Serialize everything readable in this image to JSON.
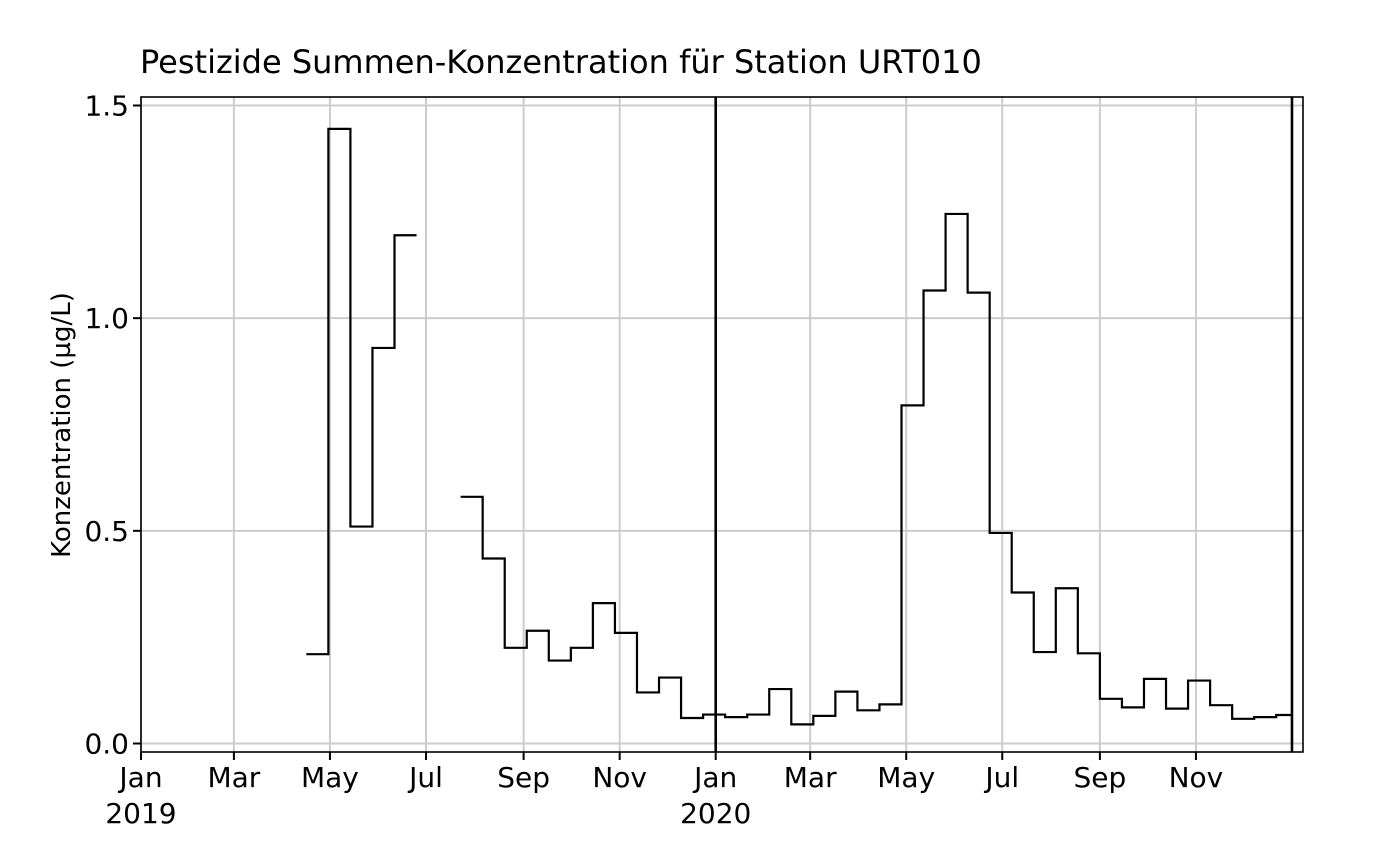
{
  "chart_data": {
    "type": "line",
    "step": true,
    "title": "Pestizide Summen-Konzentration für Station URT010",
    "xlabel": "",
    "ylabel": "Konzentration (µg/L)",
    "ylim": [
      -0.02,
      1.52
    ],
    "xlim": [
      "2019-01-01",
      "2021-01-08"
    ],
    "yticks": [
      0.0,
      0.5,
      1.0,
      1.5
    ],
    "ytick_labels": [
      "0.0",
      "0.5",
      "1.0",
      "1.5"
    ],
    "xticks": [
      {
        "date": "2019-01-01",
        "label": "Jan",
        "year": "2019"
      },
      {
        "date": "2019-03-01",
        "label": "Mar",
        "year": ""
      },
      {
        "date": "2019-05-01",
        "label": "May",
        "year": ""
      },
      {
        "date": "2019-07-01",
        "label": "Jul",
        "year": ""
      },
      {
        "date": "2019-09-01",
        "label": "Sep",
        "year": ""
      },
      {
        "date": "2019-11-01",
        "label": "Nov",
        "year": ""
      },
      {
        "date": "2020-01-01",
        "label": "Jan",
        "year": "2020"
      },
      {
        "date": "2020-03-01",
        "label": "Mar",
        "year": ""
      },
      {
        "date": "2020-05-01",
        "label": "May",
        "year": ""
      },
      {
        "date": "2020-07-01",
        "label": "Jul",
        "year": ""
      },
      {
        "date": "2020-09-01",
        "label": "Sep",
        "year": ""
      },
      {
        "date": "2020-11-01",
        "label": "Nov",
        "year": ""
      }
    ],
    "vertical_lines": [
      "2020-01-01",
      "2021-01-01"
    ],
    "grid": true,
    "segments": [
      {
        "points": [
          {
            "start": "2019-04-16",
            "end": "2019-04-30",
            "value": 0.21
          },
          {
            "start": "2019-04-30",
            "end": "2019-05-14",
            "value": 1.445
          },
          {
            "start": "2019-05-14",
            "end": "2019-05-28",
            "value": 0.51
          },
          {
            "start": "2019-05-28",
            "end": "2019-06-11",
            "value": 0.93
          },
          {
            "start": "2019-06-11",
            "end": "2019-06-25",
            "value": 1.195
          }
        ]
      },
      {
        "points": [
          {
            "start": "2019-07-23",
            "end": "2019-08-06",
            "value": 0.58
          },
          {
            "start": "2019-08-06",
            "end": "2019-08-20",
            "value": 0.435
          },
          {
            "start": "2019-08-20",
            "end": "2019-09-03",
            "value": 0.225
          },
          {
            "start": "2019-09-03",
            "end": "2019-09-17",
            "value": 0.265
          },
          {
            "start": "2019-09-17",
            "end": "2019-10-01",
            "value": 0.195
          },
          {
            "start": "2019-10-01",
            "end": "2019-10-15",
            "value": 0.225
          },
          {
            "start": "2019-10-15",
            "end": "2019-10-29",
            "value": 0.33
          },
          {
            "start": "2019-10-29",
            "end": "2019-11-12",
            "value": 0.26
          },
          {
            "start": "2019-11-12",
            "end": "2019-11-26",
            "value": 0.12
          },
          {
            "start": "2019-11-26",
            "end": "2019-12-10",
            "value": 0.155
          },
          {
            "start": "2019-12-10",
            "end": "2019-12-24",
            "value": 0.06
          },
          {
            "start": "2019-12-24",
            "end": "2020-01-07",
            "value": 0.068
          },
          {
            "start": "2020-01-07",
            "end": "2020-01-21",
            "value": 0.062
          },
          {
            "start": "2020-01-21",
            "end": "2020-02-04",
            "value": 0.068
          },
          {
            "start": "2020-02-04",
            "end": "2020-02-18",
            "value": 0.128
          },
          {
            "start": "2020-02-18",
            "end": "2020-03-03",
            "value": 0.045
          },
          {
            "start": "2020-03-03",
            "end": "2020-03-17",
            "value": 0.065
          },
          {
            "start": "2020-03-17",
            "end": "2020-03-31",
            "value": 0.122
          },
          {
            "start": "2020-03-31",
            "end": "2020-04-14",
            "value": 0.078
          },
          {
            "start": "2020-04-14",
            "end": "2020-04-28",
            "value": 0.092
          },
          {
            "start": "2020-04-28",
            "end": "2020-05-12",
            "value": 0.795
          },
          {
            "start": "2020-05-12",
            "end": "2020-05-26",
            "value": 1.065
          },
          {
            "start": "2020-05-26",
            "end": "2020-06-09",
            "value": 1.245
          },
          {
            "start": "2020-06-09",
            "end": "2020-06-23",
            "value": 1.06
          },
          {
            "start": "2020-06-23",
            "end": "2020-07-07",
            "value": 0.495
          },
          {
            "start": "2020-07-07",
            "end": "2020-07-21",
            "value": 0.355
          },
          {
            "start": "2020-07-21",
            "end": "2020-08-04",
            "value": 0.215
          },
          {
            "start": "2020-08-04",
            "end": "2020-08-18",
            "value": 0.365
          },
          {
            "start": "2020-08-18",
            "end": "2020-09-01",
            "value": 0.212
          },
          {
            "start": "2020-09-01",
            "end": "2020-09-15",
            "value": 0.105
          },
          {
            "start": "2020-09-15",
            "end": "2020-09-29",
            "value": 0.085
          },
          {
            "start": "2020-09-29",
            "end": "2020-10-13",
            "value": 0.152
          },
          {
            "start": "2020-10-13",
            "end": "2020-10-27",
            "value": 0.082
          },
          {
            "start": "2020-10-27",
            "end": "2020-11-10",
            "value": 0.148
          },
          {
            "start": "2020-11-10",
            "end": "2020-11-24",
            "value": 0.09
          },
          {
            "start": "2020-11-24",
            "end": "2020-12-08",
            "value": 0.058
          },
          {
            "start": "2020-12-08",
            "end": "2020-12-22",
            "value": 0.062
          },
          {
            "start": "2020-12-22",
            "end": "2021-01-01",
            "value": 0.067
          }
        ]
      }
    ]
  }
}
